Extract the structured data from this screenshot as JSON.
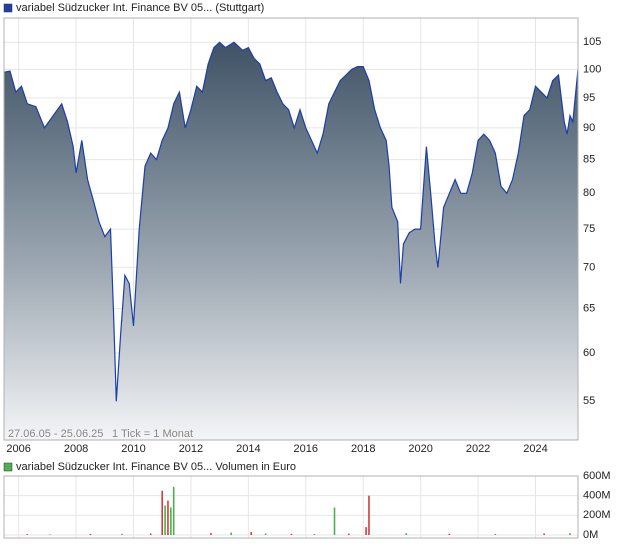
{
  "chart_data": [
    {
      "type": "area",
      "series": [
        {
          "name": "variabel Südzucker Int. Finance BV 05... (Stuttgart)",
          "color": "#1c3fa8",
          "x": [
            2005.5,
            2005.7,
            2005.9,
            2006.1,
            2006.3,
            2006.6,
            2006.9,
            2007.2,
            2007.5,
            2007.7,
            2007.9,
            2008.0,
            2008.2,
            2008.4,
            2008.6,
            2008.8,
            2009.0,
            2009.2,
            2009.3,
            2009.4,
            2009.55,
            2009.7,
            2009.85,
            2010.0,
            2010.2,
            2010.4,
            2010.6,
            2010.8,
            2011.0,
            2011.2,
            2011.4,
            2011.6,
            2011.8,
            2012.0,
            2012.2,
            2012.4,
            2012.6,
            2012.8,
            2013.0,
            2013.2,
            2013.5,
            2013.8,
            2014.0,
            2014.2,
            2014.4,
            2014.6,
            2014.8,
            2015.0,
            2015.2,
            2015.4,
            2015.6,
            2015.8,
            2016.0,
            2016.2,
            2016.4,
            2016.6,
            2016.8,
            2017.0,
            2017.2,
            2017.4,
            2017.6,
            2017.8,
            2018.0,
            2018.2,
            2018.4,
            2018.6,
            2018.8,
            2018.9,
            2019.0,
            2019.2,
            2019.3,
            2019.4,
            2019.6,
            2019.8,
            2020.0,
            2020.2,
            2020.35,
            2020.5,
            2020.6,
            2020.8,
            2021.0,
            2021.2,
            2021.4,
            2021.6,
            2021.8,
            2022.0,
            2022.2,
            2022.4,
            2022.6,
            2022.8,
            2023.0,
            2023.2,
            2023.4,
            2023.6,
            2023.8,
            2024.0,
            2024.2,
            2024.4,
            2024.6,
            2024.8,
            2025.0,
            2025.1,
            2025.2,
            2025.3,
            2025.48
          ],
          "values": [
            99.5,
            99.7,
            96,
            97,
            94,
            93.5,
            90,
            92,
            94,
            91,
            87,
            83,
            88,
            82,
            79,
            76,
            74,
            75,
            65,
            55,
            62,
            69,
            68,
            63,
            75,
            84,
            86,
            85,
            88,
            90,
            94,
            96,
            90,
            93,
            97,
            96,
            101,
            104,
            105,
            104,
            105,
            103.5,
            104,
            102,
            101,
            98,
            98.5,
            96,
            94,
            93,
            90,
            93,
            90,
            88,
            86,
            89,
            94,
            96,
            98,
            99,
            100,
            100.5,
            100.5,
            98,
            93,
            90,
            88,
            84,
            78,
            76,
            68,
            73,
            74.5,
            75,
            75,
            87,
            80,
            73,
            70,
            78,
            80,
            82,
            80,
            80,
            83,
            88,
            89,
            88,
            86,
            81,
            80,
            82,
            86,
            92,
            93,
            97,
            96,
            95,
            98,
            99,
            91,
            89,
            92,
            91,
            100
          ]
        }
      ],
      "xlim": [
        2005.49,
        2025.48
      ],
      "ylim": [
        51.3,
        109.7
      ],
      "log": true,
      "grid": true,
      "xticks": [
        2006,
        2008,
        2010,
        2012,
        2014,
        2016,
        2018,
        2020,
        2022,
        2024
      ],
      "yticks": [
        55,
        60,
        65,
        70,
        75,
        80,
        85,
        90,
        95,
        100,
        105
      ],
      "annotations": [
        "27.06.05 - 25.06.25",
        "1 Tick = 1 Monat"
      ]
    },
    {
      "type": "bar",
      "series": [
        {
          "name": "variabel Südzucker Int. Finance BV 05... Volumen in Euro",
          "color": "#4caf50",
          "x": [
            2006.3,
            2007.1,
            2008.5,
            2009.6,
            2010.6,
            2011.0,
            2011.1,
            2011.2,
            2011.3,
            2011.4,
            2012.7,
            2013.4,
            2014.1,
            2014.6,
            2015.5,
            2016.3,
            2017.0,
            2017.5,
            2018.1,
            2018.2,
            2019.5,
            2021.0,
            2022.6,
            2024.3,
            2025.2
          ],
          "values": [
            8,
            6,
            10,
            12,
            15,
            450,
            300,
            350,
            280,
            490,
            20,
            25,
            30,
            15,
            12,
            10,
            280,
            14,
            80,
            400,
            18,
            12,
            10,
            15,
            20
          ],
          "colors": [
            "#d23c3c",
            "#4caf50",
            "#d23c3c",
            "#4caf50",
            "#d23c3c",
            "#d23c3c",
            "#4caf50",
            "#d23c3c",
            "#4caf50",
            "#4caf50",
            "#d23c3c",
            "#4caf50",
            "#d23c3c",
            "#4caf50",
            "#d23c3c",
            "#4caf50",
            "#4caf50",
            "#d23c3c",
            "#d23c3c",
            "#d23c3c",
            "#4caf50",
            "#d23c3c",
            "#4caf50",
            "#d23c3c",
            "#4caf50"
          ]
        }
      ],
      "xlim": [
        2005.49,
        2025.48
      ],
      "ylim": [
        0,
        600
      ],
      "yticks": [
        {
          "value": 0,
          "label": "0M"
        },
        {
          "value": 200,
          "label": "200M"
        },
        {
          "value": 400,
          "label": "400M"
        },
        {
          "value": 600,
          "label": "600M"
        }
      ]
    }
  ]
}
